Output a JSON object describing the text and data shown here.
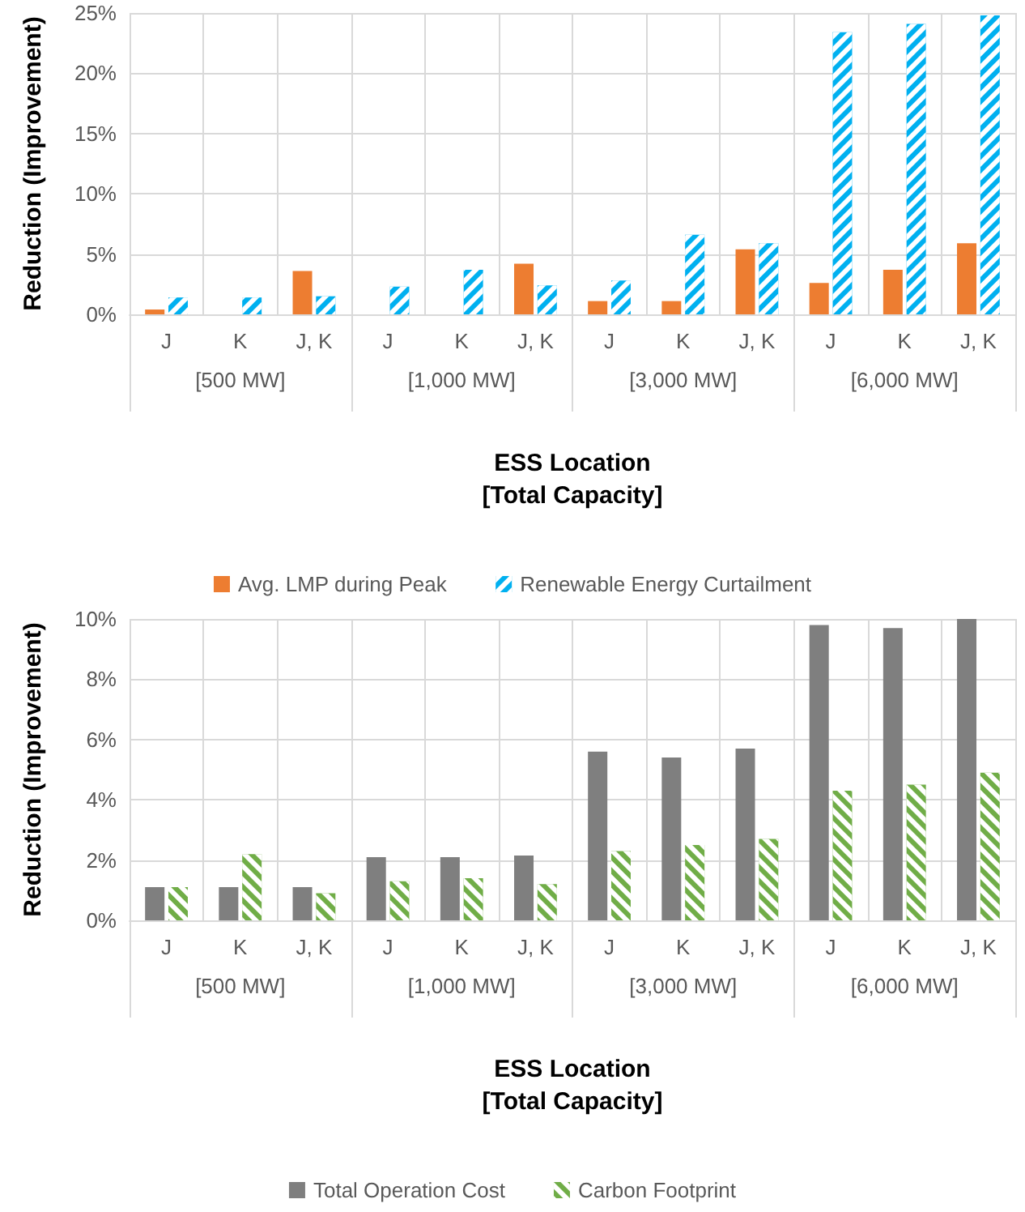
{
  "chart_data": [
    {
      "type": "bar",
      "xlabel": "ESS Location\n[Total Capacity]",
      "ylabel": "Reduction (Improvement)",
      "categories": [
        "J",
        "K",
        "J, K",
        "J",
        "K",
        "J, K",
        "J",
        "K",
        "J, K",
        "J",
        "K",
        "J, K"
      ],
      "annotations": [
        "[500 MW]",
        "[1,000 MW]",
        "[3,000 MW]",
        "[6,000 MW]"
      ],
      "series": [
        {
          "name": "Avg. LMP during Peak",
          "color": "#ed7d31",
          "values": [
            0.4,
            0,
            3.6,
            0,
            0,
            4.2,
            1.1,
            1.1,
            5.4,
            2.6,
            3.7,
            5.9
          ]
        },
        {
          "name": "Renewable Energy Curtailment",
          "color": "#00b0f0",
          "values": [
            1.4,
            1.4,
            1.5,
            2.3,
            3.7,
            2.4,
            2.8,
            6.6,
            5.9,
            23.4,
            24.1,
            24.8
          ]
        }
      ],
      "ylim": [
        0,
        25
      ],
      "yticks": [
        {
          "value": 0,
          "label": "0%"
        },
        {
          "value": 5,
          "label": "5%"
        },
        {
          "value": 10,
          "label": "10%"
        },
        {
          "value": 15,
          "label": "15%"
        },
        {
          "value": 20,
          "label": "20%"
        },
        {
          "value": 25,
          "label": "25%"
        }
      ],
      "grid": true,
      "legend": "bottom"
    },
    {
      "type": "bar",
      "xlabel": "ESS Location\n[Total Capacity]",
      "ylabel": "Reduction (Improvement)",
      "categories": [
        "J",
        "K",
        "J, K",
        "J",
        "K",
        "J, K",
        "J",
        "K",
        "J, K",
        "J",
        "K",
        "J, K"
      ],
      "annotations": [
        "[500 MW]",
        "[1,000 MW]",
        "[3,000 MW]",
        "[6,000 MW]"
      ],
      "series": [
        {
          "name": "Total Operation Cost",
          "color": "#7f7f7f",
          "values": [
            1.1,
            1.1,
            1.1,
            2.1,
            2.1,
            2.15,
            5.6,
            5.4,
            5.7,
            9.8,
            9.7,
            10
          ]
        },
        {
          "name": "Carbon Footprint",
          "color": "#70ad47",
          "values": [
            1.1,
            2.2,
            0.9,
            1.3,
            1.4,
            1.2,
            2.3,
            2.5,
            2.7,
            4.3,
            4.5,
            4.9
          ]
        }
      ],
      "ylim": [
        0,
        10
      ],
      "yticks": [
        {
          "value": 0,
          "label": "0%"
        },
        {
          "value": 2,
          "label": "2%"
        },
        {
          "value": 4,
          "label": "4%"
        },
        {
          "value": 6,
          "label": "6%"
        },
        {
          "value": 8,
          "label": "8%"
        },
        {
          "value": 10,
          "label": "10%"
        }
      ],
      "grid": true,
      "legend": "bottom"
    }
  ]
}
